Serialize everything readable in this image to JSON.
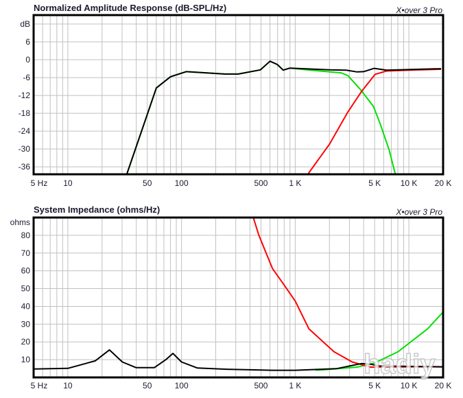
{
  "chart_data": [
    {
      "type": "line",
      "title": "Normalized Amplitude Response (dB-SPL/Hz)",
      "brand": "X•over 3 Pro",
      "ylabel": "dB",
      "x_scale": "log",
      "xlim": [
        5,
        20000
      ],
      "ylim": [
        -38.5,
        15
      ],
      "grid": true,
      "x_ticks": [
        {
          "value": 5,
          "label": "5 Hz"
        },
        {
          "value": 10,
          "label": "10"
        },
        {
          "value": 50,
          "label": "50"
        },
        {
          "value": 100,
          "label": "100"
        },
        {
          "value": 500,
          "label": "500"
        },
        {
          "value": 1000,
          "label": "1 K"
        },
        {
          "value": 5000,
          "label": "5 K"
        },
        {
          "value": 10000,
          "label": "10 K"
        },
        {
          "value": 20000,
          "label": "20 K"
        }
      ],
      "y_ticks": [
        {
          "value": 6,
          "label": "6"
        },
        {
          "value": 0,
          "label": "0"
        },
        {
          "value": -6,
          "label": "-6"
        },
        {
          "value": -12,
          "label": "-12"
        },
        {
          "value": -18,
          "label": "-18"
        },
        {
          "value": -24,
          "label": "-24"
        },
        {
          "value": -30,
          "label": "-30"
        },
        {
          "value": -36,
          "label": "-36"
        }
      ],
      "y_grid": [
        12,
        6,
        0,
        -6,
        -12,
        -18,
        -24,
        -30,
        -36
      ],
      "series": [
        {
          "color": "#00e000",
          "points": [
            [
              33,
              -38.5
            ],
            [
              50,
              -18.4
            ],
            [
              60,
              -9.5
            ],
            [
              80,
              -5.7
            ],
            [
              110,
              -4.0
            ],
            [
              240,
              -4.8
            ],
            [
              316,
              -4.8
            ],
            [
              494,
              -3.4
            ],
            [
              600,
              -0.5
            ],
            [
              696,
              -1.6
            ],
            [
              785,
              -3.5
            ],
            [
              898,
              -2.8
            ],
            [
              1260,
              -3.4
            ],
            [
              2520,
              -4.4
            ],
            [
              2900,
              -5.3
            ],
            [
              3730,
              -9.9
            ],
            [
              4880,
              -15.7
            ],
            [
              5590,
              -21.5
            ],
            [
              6700,
              -30.3
            ],
            [
              7600,
              -38.5
            ]
          ]
        },
        {
          "color": "#ff0000",
          "points": [
            [
              1290,
              -38.5
            ],
            [
              2000,
              -28.4
            ],
            [
              2900,
              -17.6
            ],
            [
              3830,
              -10.7
            ],
            [
              5050,
              -4.9
            ],
            [
              6360,
              -3.8
            ],
            [
              10000,
              -3.5
            ],
            [
              19200,
              -3.2
            ]
          ]
        },
        {
          "color": "#000000",
          "points": [
            [
              33,
              -38.5
            ],
            [
              50,
              -18.4
            ],
            [
              60,
              -9.5
            ],
            [
              80,
              -5.7
            ],
            [
              110,
              -4.0
            ],
            [
              240,
              -4.8
            ],
            [
              316,
              -4.8
            ],
            [
              494,
              -3.4
            ],
            [
              600,
              -0.5
            ],
            [
              696,
              -1.6
            ],
            [
              785,
              -3.5
            ],
            [
              898,
              -2.8
            ],
            [
              2000,
              -3.4
            ],
            [
              2800,
              -3.5
            ],
            [
              3500,
              -4.1
            ],
            [
              4000,
              -4.0
            ],
            [
              4950,
              -2.9
            ],
            [
              6360,
              -3.5
            ],
            [
              19200,
              -3.0
            ]
          ]
        }
      ]
    },
    {
      "type": "line",
      "title": "System Impedance (ohms/Hz)",
      "brand": "X•over 3 Pro",
      "ylabel": "ohms",
      "x_scale": "log",
      "xlim": [
        5,
        20000
      ],
      "ylim": [
        0,
        90
      ],
      "grid": true,
      "x_ticks": [
        {
          "value": 5,
          "label": "5 Hz"
        },
        {
          "value": 10,
          "label": "10"
        },
        {
          "value": 50,
          "label": "50"
        },
        {
          "value": 100,
          "label": "100"
        },
        {
          "value": 500,
          "label": "500"
        },
        {
          "value": 1000,
          "label": "1 K"
        },
        {
          "value": 5000,
          "label": "5 K"
        },
        {
          "value": 10000,
          "label": "10 K"
        },
        {
          "value": 20000,
          "label": "20 K"
        }
      ],
      "y_ticks": [
        {
          "value": 80,
          "label": "80"
        },
        {
          "value": 70,
          "label": "70"
        },
        {
          "value": 60,
          "label": "60"
        },
        {
          "value": 50,
          "label": "50"
        },
        {
          "value": 40,
          "label": "40"
        },
        {
          "value": 30,
          "label": "30"
        },
        {
          "value": 20,
          "label": "20"
        },
        {
          "value": 10,
          "label": "10"
        }
      ],
      "y_grid": [
        80,
        70,
        60,
        50,
        40,
        30,
        20,
        10
      ],
      "series": [
        {
          "color": "#00e000",
          "points": [
            [
              1500,
              4.1
            ],
            [
              1720,
              4.2
            ],
            [
              3500,
              5.8
            ],
            [
              5000,
              8.1
            ],
            [
              8040,
              14.5
            ],
            [
              14600,
              27.3
            ],
            [
              19800,
              36.5
            ]
          ]
        },
        {
          "color": "#ff0000",
          "points": [
            [
              430,
              89.6
            ],
            [
              479,
              80
            ],
            [
              631,
              61.3
            ],
            [
              800,
              52
            ],
            [
              1000,
              43
            ],
            [
              1320,
              27.3
            ],
            [
              2190,
              14.5
            ],
            [
              3170,
              8.7
            ],
            [
              4600,
              5.8
            ],
            [
              15000,
              6.0
            ],
            [
              19800,
              5.9
            ]
          ]
        },
        {
          "color": "#000000",
          "points": [
            [
              5,
              4.7
            ],
            [
              10,
              5.1
            ],
            [
              17.4,
              9.3
            ],
            [
              23.2,
              15.5
            ],
            [
              30.2,
              8.7
            ],
            [
              39.9,
              5.5
            ],
            [
              57.6,
              5.5
            ],
            [
              72.8,
              10
            ],
            [
              84,
              13.5
            ],
            [
              100,
              8.7
            ],
            [
              138,
              5.3
            ],
            [
              250,
              4.6
            ],
            [
              631,
              4.0
            ],
            [
              1000,
              4.0
            ],
            [
              2300,
              4.9
            ],
            [
              3830,
              7.8
            ],
            [
              4600,
              7.4
            ],
            [
              5530,
              6.4
            ],
            [
              10000,
              6.2
            ],
            [
              18800,
              6.0
            ],
            [
              20000,
              6.0
            ]
          ]
        }
      ]
    }
  ],
  "watermark": "hadiy.net"
}
